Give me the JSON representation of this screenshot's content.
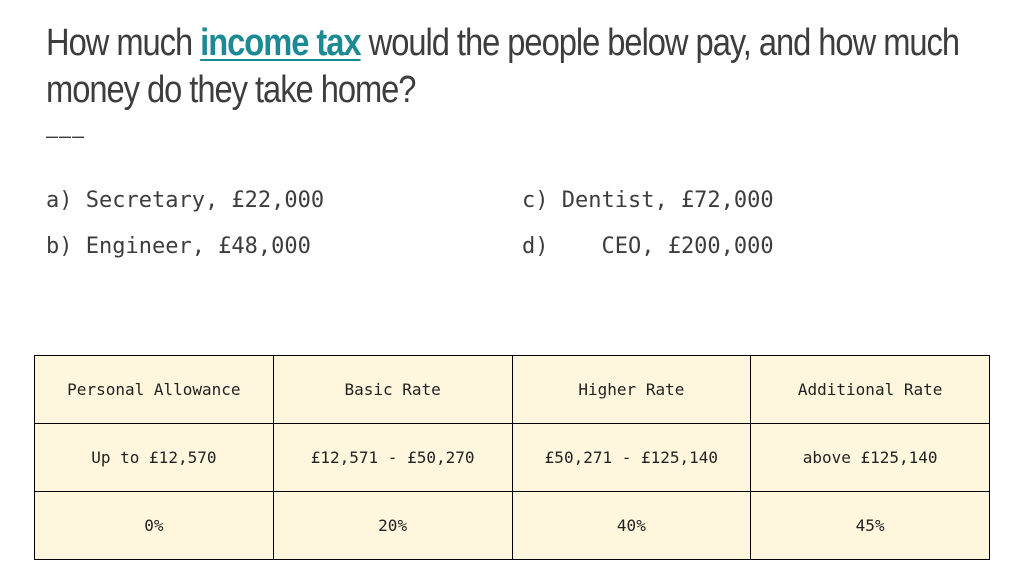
{
  "title": {
    "before": "How much ",
    "keyword": "income tax",
    "after": " would the people below pay, and how much",
    "line2": "money do they take home?"
  },
  "divider": "———",
  "people": {
    "a": "a) Secretary, £22,000",
    "b": "b) Engineer, £48,000",
    "c": "c) Dentist, £72,000",
    "d": "d)    CEO, £200,000"
  },
  "tax_table": {
    "headers": [
      "Personal Allowance",
      "Basic Rate",
      "Higher Rate",
      "Additional Rate"
    ],
    "bands": [
      "Up to £12,570",
      "£12,571 - £50,270",
      "£50,271 - £125,140",
      "above £125,140"
    ],
    "rates": [
      "0%",
      "20%",
      "40%",
      "45%"
    ]
  },
  "colors": {
    "keyword": "#1b8a95",
    "text": "#3d3d3d",
    "table_fill": "#fef6dd",
    "table_border": "#000000"
  }
}
